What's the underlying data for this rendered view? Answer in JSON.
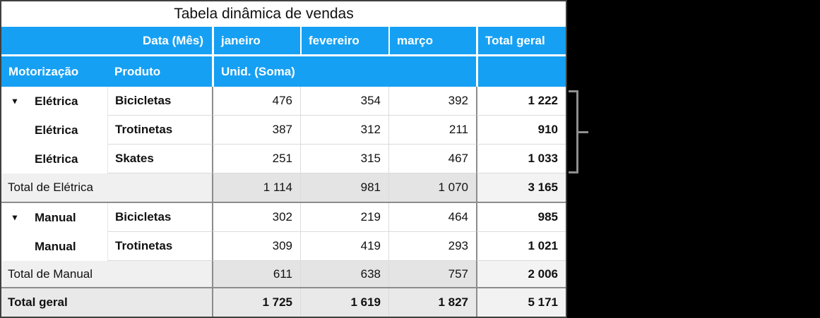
{
  "pivot_table": {
    "title": "Tabela dinâmica de vendas",
    "column_header_label": "Data (Mês)",
    "columns": [
      "janeiro",
      "fevereiro",
      "março"
    ],
    "grand_total_column_label": "Total geral",
    "row_header_labels": {
      "motorization": "Motorização",
      "product": "Produto"
    },
    "values_header": "Unid. (Soma)",
    "disclosure_icon": "▼",
    "groups": [
      {
        "name": "Elétrica",
        "rows": [
          {
            "motorization": "Elétrica",
            "product": "Bicicletas",
            "values": [
              "476",
              "354",
              "392"
            ],
            "row_total": "1 222"
          },
          {
            "motorization": "Elétrica",
            "product": "Trotinetas",
            "values": [
              "387",
              "312",
              "211"
            ],
            "row_total": "910"
          },
          {
            "motorization": "Elétrica",
            "product": "Skates",
            "values": [
              "251",
              "315",
              "467"
            ],
            "row_total": "1 033"
          }
        ],
        "total": {
          "label": "Total de Elétrica",
          "values": [
            "1 114",
            "981",
            "1 070"
          ],
          "row_total": "3 165"
        }
      },
      {
        "name": "Manual",
        "rows": [
          {
            "motorization": "Manual",
            "product": "Bicicletas",
            "values": [
              "302",
              "219",
              "464"
            ],
            "row_total": "985"
          },
          {
            "motorization": "Manual",
            "product": "Trotinetas",
            "values": [
              "309",
              "419",
              "293"
            ],
            "row_total": "1 021"
          }
        ],
        "total": {
          "label": "Total de Manual",
          "values": [
            "611",
            "638",
            "757"
          ],
          "row_total": "2 006"
        }
      }
    ],
    "grand_total": {
      "label": "Total geral",
      "values": [
        "1 725",
        "1 619",
        "1 827"
      ],
      "row_total": "5 171"
    }
  },
  "colors": {
    "header_blue": "#16a0f3",
    "header_text": "#ffffff",
    "body_text": "#111111",
    "total_row_data_bg": "#e4e4e4",
    "total_row_label_bg": "#f0f0f0",
    "total_column_total_bg": "#f3f3f3",
    "grand_row_bg": "#e9e9e9",
    "grand_total_cell_bg": "#f2f2f2",
    "dark_divider": "#8c8c8c",
    "light_divider": "#dbdbdb",
    "outer_border": "#3f3f3f",
    "bracket_gray": "#8f8f8f",
    "canvas_bg": "#000000"
  }
}
